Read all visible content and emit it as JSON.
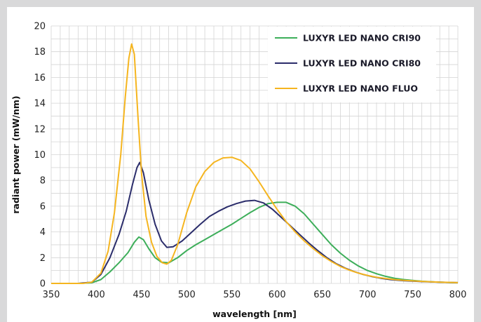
{
  "chart_data": {
    "type": "line",
    "title": "",
    "xlabel": "wavelength [nm]",
    "ylabel": "radiant power (mW/nm)",
    "xlim": [
      350,
      800
    ],
    "ylim": [
      0,
      20
    ],
    "x_ticks": [
      350,
      400,
      450,
      500,
      550,
      600,
      650,
      700,
      750,
      800
    ],
    "y_ticks": [
      0,
      2,
      4,
      6,
      8,
      10,
      12,
      14,
      16,
      18,
      20
    ],
    "grid": true,
    "legend_position": "top-right",
    "series": [
      {
        "name": "LUXYR LED NANO CRI90",
        "color": "#3dae5a",
        "points": [
          [
            350,
            0
          ],
          [
            380,
            0
          ],
          [
            395,
            0.05
          ],
          [
            405,
            0.3
          ],
          [
            415,
            0.9
          ],
          [
            425,
            1.6
          ],
          [
            435,
            2.4
          ],
          [
            442,
            3.2
          ],
          [
            447,
            3.6
          ],
          [
            452,
            3.4
          ],
          [
            458,
            2.7
          ],
          [
            465,
            2.0
          ],
          [
            472,
            1.65
          ],
          [
            480,
            1.6
          ],
          [
            490,
            2.0
          ],
          [
            500,
            2.55
          ],
          [
            510,
            3.0
          ],
          [
            520,
            3.4
          ],
          [
            530,
            3.8
          ],
          [
            540,
            4.2
          ],
          [
            550,
            4.6
          ],
          [
            560,
            5.05
          ],
          [
            570,
            5.5
          ],
          [
            580,
            5.9
          ],
          [
            590,
            6.2
          ],
          [
            600,
            6.3
          ],
          [
            610,
            6.3
          ],
          [
            620,
            6.0
          ],
          [
            630,
            5.4
          ],
          [
            640,
            4.6
          ],
          [
            650,
            3.8
          ],
          [
            660,
            3.0
          ],
          [
            670,
            2.35
          ],
          [
            680,
            1.8
          ],
          [
            690,
            1.35
          ],
          [
            700,
            1.0
          ],
          [
            710,
            0.75
          ],
          [
            720,
            0.55
          ],
          [
            730,
            0.4
          ],
          [
            740,
            0.3
          ],
          [
            750,
            0.23
          ],
          [
            760,
            0.17
          ],
          [
            770,
            0.13
          ],
          [
            780,
            0.1
          ],
          [
            790,
            0.07
          ],
          [
            800,
            0.05
          ]
        ]
      },
      {
        "name": "LUXYR LED NANO CRI80",
        "color": "#2b2d6b",
        "points": [
          [
            350,
            0
          ],
          [
            380,
            0
          ],
          [
            395,
            0.1
          ],
          [
            405,
            0.7
          ],
          [
            415,
            2.0
          ],
          [
            425,
            3.8
          ],
          [
            433,
            5.6
          ],
          [
            440,
            7.7
          ],
          [
            445,
            9.0
          ],
          [
            448,
            9.4
          ],
          [
            452,
            8.6
          ],
          [
            458,
            6.5
          ],
          [
            465,
            4.6
          ],
          [
            472,
            3.3
          ],
          [
            478,
            2.8
          ],
          [
            485,
            2.85
          ],
          [
            495,
            3.3
          ],
          [
            505,
            3.95
          ],
          [
            515,
            4.6
          ],
          [
            525,
            5.2
          ],
          [
            535,
            5.6
          ],
          [
            545,
            5.95
          ],
          [
            555,
            6.2
          ],
          [
            565,
            6.4
          ],
          [
            575,
            6.45
          ],
          [
            585,
            6.25
          ],
          [
            595,
            5.75
          ],
          [
            605,
            5.1
          ],
          [
            615,
            4.45
          ],
          [
            625,
            3.8
          ],
          [
            635,
            3.15
          ],
          [
            645,
            2.55
          ],
          [
            655,
            2.0
          ],
          [
            665,
            1.55
          ],
          [
            675,
            1.2
          ],
          [
            685,
            0.92
          ],
          [
            695,
            0.7
          ],
          [
            705,
            0.53
          ],
          [
            715,
            0.4
          ],
          [
            725,
            0.3
          ],
          [
            740,
            0.21
          ],
          [
            760,
            0.14
          ],
          [
            780,
            0.09
          ],
          [
            800,
            0.06
          ]
        ]
      },
      {
        "name": "LUXYR LED NANO FLUO",
        "color": "#f5b51f",
        "points": [
          [
            350,
            0
          ],
          [
            385,
            0
          ],
          [
            395,
            0.1
          ],
          [
            405,
            0.8
          ],
          [
            413,
            2.5
          ],
          [
            420,
            5.5
          ],
          [
            427,
            10.0
          ],
          [
            432,
            14.5
          ],
          [
            436,
            17.5
          ],
          [
            439,
            18.6
          ],
          [
            442,
            17.8
          ],
          [
            446,
            13.0
          ],
          [
            450,
            8.5
          ],
          [
            455,
            5.2
          ],
          [
            461,
            3.2
          ],
          [
            467,
            2.1
          ],
          [
            473,
            1.6
          ],
          [
            478,
            1.5
          ],
          [
            483,
            1.8
          ],
          [
            490,
            3.0
          ],
          [
            500,
            5.5
          ],
          [
            510,
            7.5
          ],
          [
            520,
            8.7
          ],
          [
            530,
            9.4
          ],
          [
            540,
            9.75
          ],
          [
            550,
            9.8
          ],
          [
            560,
            9.55
          ],
          [
            570,
            8.9
          ],
          [
            580,
            7.9
          ],
          [
            590,
            6.8
          ],
          [
            600,
            5.75
          ],
          [
            610,
            4.8
          ],
          [
            620,
            4.0
          ],
          [
            630,
            3.3
          ],
          [
            640,
            2.7
          ],
          [
            650,
            2.15
          ],
          [
            660,
            1.7
          ],
          [
            670,
            1.32
          ],
          [
            680,
            1.03
          ],
          [
            690,
            0.8
          ],
          [
            700,
            0.62
          ],
          [
            710,
            0.48
          ],
          [
            720,
            0.38
          ],
          [
            730,
            0.3
          ],
          [
            740,
            0.24
          ],
          [
            760,
            0.16
          ],
          [
            780,
            0.1
          ],
          [
            800,
            0.06
          ]
        ]
      }
    ]
  }
}
